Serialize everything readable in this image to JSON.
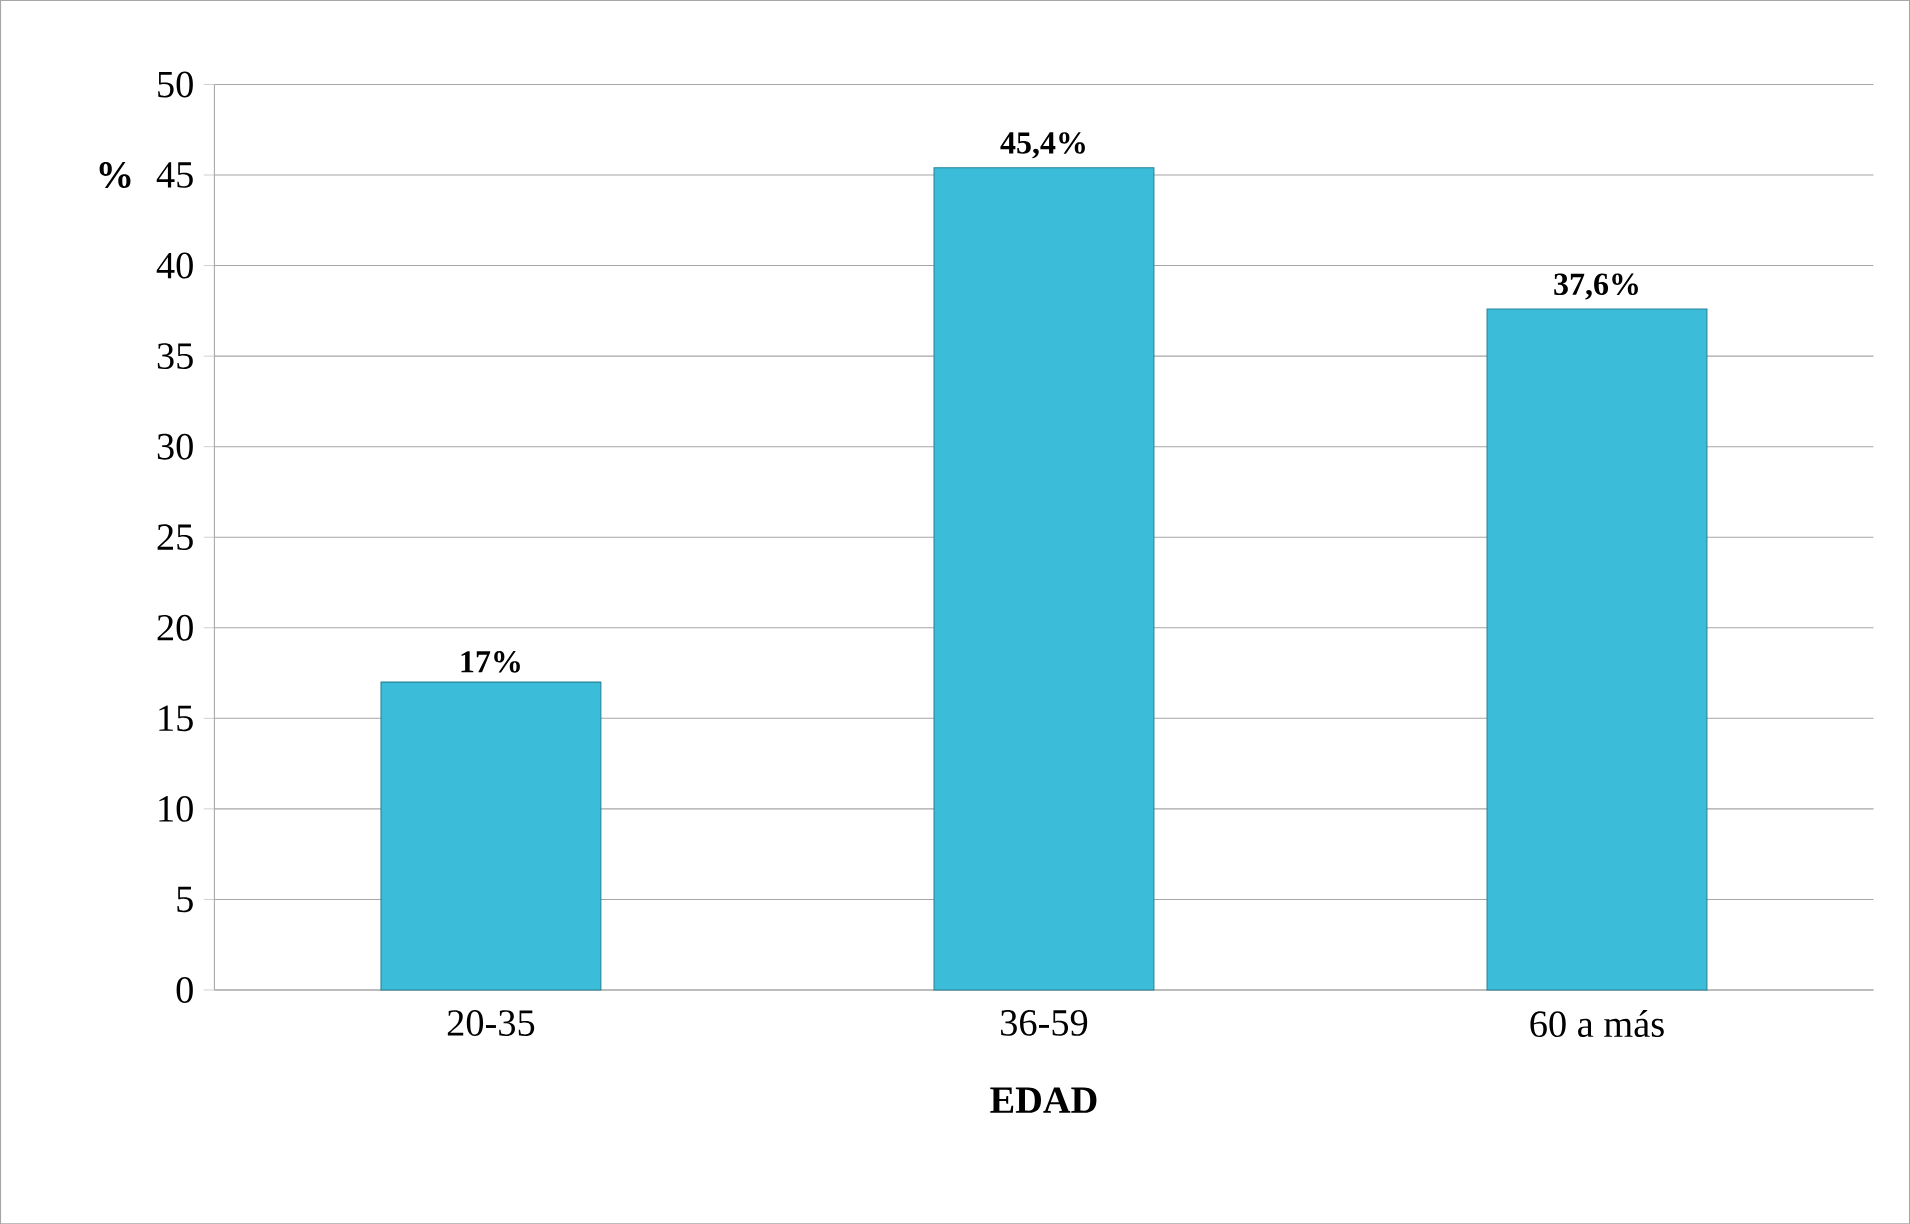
{
  "chart_data": {
    "type": "bar",
    "xlabel": "EDAD",
    "ylabel": "%",
    "categories": [
      "20-35",
      "36-59",
      "60 a más"
    ],
    "values": [
      17,
      45.4,
      37.6
    ],
    "value_labels": [
      "17%",
      "45,4%",
      "37,6%"
    ],
    "color": "#3bbcd9",
    "ylim": [
      0,
      50
    ],
    "yticks": [
      0,
      5,
      10,
      15,
      20,
      25,
      30,
      35,
      40,
      45,
      50
    ],
    "grid": "y"
  }
}
